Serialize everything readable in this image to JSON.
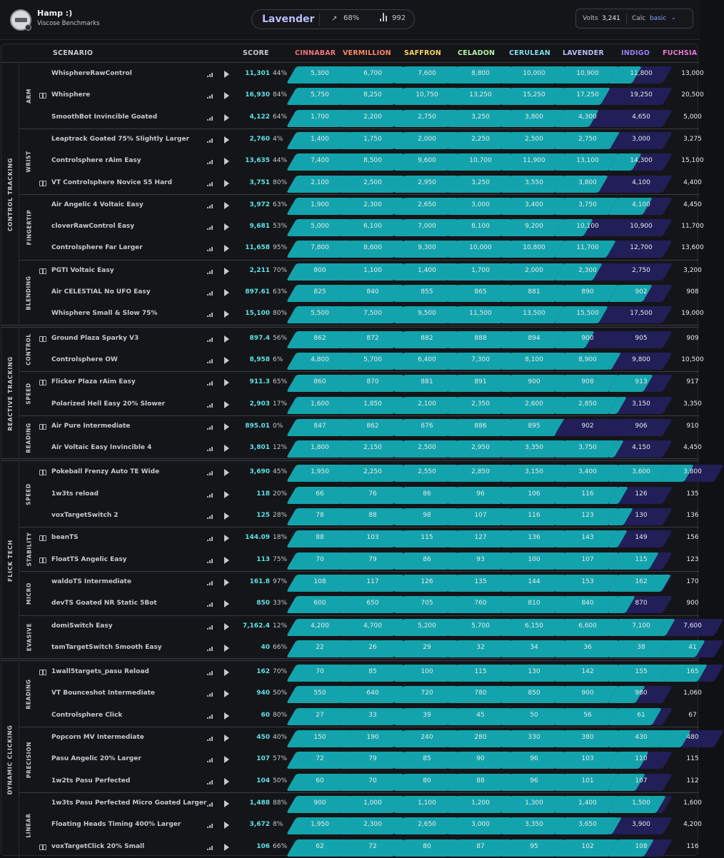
{
  "user": {
    "name": "Hamp :)",
    "subtitle": "Viscose Benchmarks"
  },
  "rank": {
    "name": "Lavender",
    "progress": "68%",
    "count": "992"
  },
  "calc": {
    "volts_label": "Volts",
    "volts": "3,241",
    "calc_label": "Calc",
    "calc_value": "basic"
  },
  "headers": {
    "scenario": "SCENARIO",
    "score": "SCORE"
  },
  "ranks": [
    {
      "name": "CINNABAR",
      "color": "#f0737a"
    },
    {
      "name": "VERMILLION",
      "color": "#f88a66"
    },
    {
      "name": "SAFFRON",
      "color": "#f4d35e"
    },
    {
      "name": "CELADON",
      "color": "#b8f3a6"
    },
    {
      "name": "CERULEAN",
      "color": "#7fdcf0"
    },
    {
      "name": "LAVENDER",
      "color": "#b9bdfa"
    },
    {
      "name": "INDIGO",
      "color": "#9b7ef8"
    },
    {
      "name": "FUCHSIA",
      "color": "#e879d8"
    }
  ],
  "colors": {
    "teal": "#13a3ac",
    "purple": "#5c2fae",
    "dark": "#211e58",
    "text_teal": "#5fe2e8",
    "text_purple": "#c59af5",
    "text_blue": "#a9c2ff",
    "text_dim": "#d4d6db"
  },
  "categories": [
    {
      "name": "CONTROL TRACKING",
      "subcategories": [
        {
          "name": "ARM",
          "scenarios": [
            {
              "name": "WhisphereRawControl",
              "book": false,
              "score": "11,301",
              "pct": "44%",
              "thresholds": [
                "5,300",
                "6,700",
                "7,600",
                "8,800",
                "10,000",
                "10,900",
                "11,800",
                "13,000"
              ]
            },
            {
              "name": "Whisphere",
              "book": true,
              "score": "16,930",
              "pct": "84%",
              "thresholds": [
                "5,750",
                "8,250",
                "10,750",
                "13,250",
                "15,250",
                "17,250",
                "19,250",
                "20,500"
              ]
            },
            {
              "name": "SmoothBot Invincible Goated",
              "book": false,
              "score": "4,122",
              "pct": "64%",
              "thresholds": [
                "1,700",
                "2,200",
                "2,750",
                "3,250",
                "3,800",
                "4,300",
                "4,650",
                "5,000"
              ]
            }
          ]
        },
        {
          "name": "WRIST",
          "scenarios": [
            {
              "name": "Leaptrack Goated 75% Slightly Larger",
              "book": false,
              "score": "2,760",
              "pct": "4%",
              "thresholds": [
                "1,400",
                "1,750",
                "2,000",
                "2,250",
                "2,500",
                "2,750",
                "3,000",
                "3,275"
              ]
            },
            {
              "name": "Controlsphere rAim Easy",
              "book": false,
              "score": "13,635",
              "pct": "44%",
              "thresholds": [
                "7,400",
                "8,500",
                "9,600",
                "10,700",
                "11,900",
                "13,100",
                "14,300",
                "15,100"
              ]
            },
            {
              "name": "VT Controlsphere Novice S5 Hard",
              "book": true,
              "score": "3,751",
              "pct": "80%",
              "thresholds": [
                "2,100",
                "2,500",
                "2,950",
                "3,250",
                "3,550",
                "3,800",
                "4,100",
                "4,400"
              ]
            }
          ]
        },
        {
          "name": "FINGERTIP",
          "scenarios": [
            {
              "name": "Air Angelic 4 Voltaic Easy",
              "book": false,
              "score": "3,972",
              "pct": "63%",
              "thresholds": [
                "1,900",
                "2,300",
                "2,650",
                "3,000",
                "3,400",
                "3,750",
                "4,100",
                "4,450"
              ]
            },
            {
              "name": "cloverRawControl Easy",
              "book": false,
              "score": "9,681",
              "pct": "53%",
              "thresholds": [
                "5,000",
                "6,100",
                "7,000",
                "8,100",
                "9,200",
                "10,100",
                "10,900",
                "11,700"
              ]
            },
            {
              "name": "Controlsphere Far Larger",
              "book": false,
              "score": "11,658",
              "pct": "95%",
              "thresholds": [
                "7,800",
                "8,600",
                "9,300",
                "10,000",
                "10,800",
                "11,700",
                "12,700",
                "13,600"
              ]
            }
          ]
        },
        {
          "name": "BLENDING",
          "scenarios": [
            {
              "name": "PGTI Voltaic Easy",
              "book": true,
              "score": "2,211",
              "pct": "70%",
              "thresholds": [
                "800",
                "1,100",
                "1,400",
                "1,700",
                "2,000",
                "2,300",
                "2,750",
                "3,200"
              ]
            },
            {
              "name": "Air CELESTIAL No UFO Easy",
              "book": false,
              "score": "897.61",
              "pct": "63%",
              "thresholds": [
                "825",
                "840",
                "855",
                "865",
                "881",
                "890",
                "902",
                "908"
              ]
            },
            {
              "name": "Whisphere Small & Slow 75%",
              "book": false,
              "score": "15,100",
              "pct": "80%",
              "thresholds": [
                "5,500",
                "7,500",
                "9,500",
                "11,500",
                "13,500",
                "15,500",
                "17,500",
                "19,000"
              ]
            }
          ]
        }
      ]
    },
    {
      "name": "REACTIVE TRACKING",
      "subcategories": [
        {
          "name": "CONTROL",
          "scenarios": [
            {
              "name": "Ground Plaza Sparky V3",
              "book": true,
              "score": "897.4",
              "pct": "56%",
              "thresholds": [
                "862",
                "872",
                "882",
                "888",
                "894",
                "900",
                "905",
                "909"
              ]
            },
            {
              "name": "Controlsphere OW",
              "book": false,
              "score": "8,958",
              "pct": "6%",
              "thresholds": [
                "4,800",
                "5,700",
                "6,400",
                "7,300",
                "8,100",
                "8,900",
                "9,800",
                "10,500"
              ]
            }
          ]
        },
        {
          "name": "SPEED",
          "scenarios": [
            {
              "name": "Flicker Plaza rAim Easy",
              "book": true,
              "score": "911.3",
              "pct": "65%",
              "thresholds": [
                "860",
                "870",
                "881",
                "891",
                "900",
                "908",
                "913",
                "917"
              ]
            },
            {
              "name": "Polarized Hell Easy 20% Slower",
              "book": false,
              "score": "2,903",
              "pct": "17%",
              "thresholds": [
                "1,600",
                "1,850",
                "2,100",
                "2,350",
                "2,600",
                "2,850",
                "3,150",
                "3,350"
              ]
            }
          ]
        },
        {
          "name": "READING",
          "scenarios": [
            {
              "name": "Air Pure Intermediate",
              "book": true,
              "score": "895.01",
              "pct": "0%",
              "thresholds": [
                "847",
                "862",
                "876",
                "886",
                "895",
                "902",
                "906",
                "910"
              ]
            },
            {
              "name": "Air Voltaic Easy Invincible 4",
              "book": false,
              "score": "3,801",
              "pct": "12%",
              "thresholds": [
                "1,800",
                "2,150",
                "2,500",
                "2,950",
                "3,350",
                "3,750",
                "4,150",
                "4,450"
              ]
            }
          ]
        }
      ]
    },
    {
      "name": "FLICK TECH",
      "subcategories": [
        {
          "name": "SPEED",
          "scenarios": [
            {
              "name": "Pokeball Frenzy Auto TE Wide",
              "book": true,
              "score": "3,690",
              "pct": "45%",
              "thresholds": [
                "1,950",
                "2,250",
                "2,550",
                "2,850",
                "3,150",
                "3,400",
                "3,600",
                "3,800"
              ]
            },
            {
              "name": "1w3ts reload",
              "book": false,
              "score": "118",
              "pct": "20%",
              "thresholds": [
                "66",
                "76",
                "86",
                "96",
                "106",
                "116",
                "126",
                "135"
              ]
            },
            {
              "name": "voxTargetSwitch 2",
              "book": false,
              "score": "125",
              "pct": "28%",
              "thresholds": [
                "78",
                "88",
                "98",
                "107",
                "116",
                "123",
                "130",
                "136"
              ]
            }
          ]
        },
        {
          "name": "STABILITY",
          "scenarios": [
            {
              "name": "beanTS",
              "book": true,
              "score": "144.09",
              "pct": "18%",
              "thresholds": [
                "88",
                "103",
                "115",
                "127",
                "136",
                "143",
                "149",
                "156"
              ]
            },
            {
              "name": "FloatTS Angelic Easy",
              "book": true,
              "score": "113",
              "pct": "75%",
              "thresholds": [
                "70",
                "79",
                "86",
                "93",
                "100",
                "107",
                "115",
                "123"
              ]
            }
          ]
        },
        {
          "name": "MICRO",
          "scenarios": [
            {
              "name": "waldoTS Intermediate",
              "book": false,
              "score": "161.8",
              "pct": "97%",
              "thresholds": [
                "108",
                "117",
                "126",
                "135",
                "144",
                "153",
                "162",
                "170"
              ]
            },
            {
              "name": "devTS Goated NR Static 5Bot",
              "book": false,
              "score": "850",
              "pct": "33%",
              "thresholds": [
                "600",
                "650",
                "705",
                "760",
                "810",
                "840",
                "870",
                "900"
              ]
            }
          ]
        },
        {
          "name": "EVASIVE",
          "scenarios": [
            {
              "name": "domiSwitch Easy",
              "book": false,
              "score": "7,162.4",
              "pct": "12%",
              "thresholds": [
                "4,200",
                "4,700",
                "5,200",
                "5,700",
                "6,150",
                "6,600",
                "7,100",
                "7,600"
              ]
            },
            {
              "name": "tamTargetSwitch Smooth Easy",
              "book": false,
              "score": "40",
              "pct": "66%",
              "thresholds": [
                "22",
                "26",
                "29",
                "32",
                "34",
                "36",
                "38",
                "41"
              ]
            }
          ]
        }
      ]
    },
    {
      "name": "DYNAMIC CLICKING",
      "subcategories": [
        {
          "name": "READING",
          "scenarios": [
            {
              "name": "1wall5targets_pasu Reload",
              "book": true,
              "score": "162",
              "pct": "70%",
              "thresholds": [
                "70",
                "85",
                "100",
                "115",
                "130",
                "142",
                "155",
                "165"
              ]
            },
            {
              "name": "VT Bounceshot Intermediate",
              "book": false,
              "score": "940",
              "pct": "50%",
              "thresholds": [
                "550",
                "640",
                "720",
                "780",
                "850",
                "900",
                "980",
                "1,060"
              ]
            },
            {
              "name": "Controlsphere Click",
              "book": false,
              "score": "60",
              "pct": "80%",
              "thresholds": [
                "27",
                "33",
                "39",
                "45",
                "50",
                "56",
                "61",
                "67"
              ]
            }
          ]
        },
        {
          "name": "PRECISION",
          "scenarios": [
            {
              "name": "Popcorn MV Intermediate",
              "book": false,
              "score": "450",
              "pct": "40%",
              "thresholds": [
                "150",
                "190",
                "240",
                "280",
                "330",
                "380",
                "430",
                "480"
              ]
            },
            {
              "name": "Pasu Angelic 20% Larger",
              "book": false,
              "score": "107",
              "pct": "57%",
              "thresholds": [
                "72",
                "79",
                "85",
                "90",
                "96",
                "103",
                "110",
                "115"
              ]
            },
            {
              "name": "1w2ts Pasu Perfected",
              "book": false,
              "score": "104",
              "pct": "50%",
              "thresholds": [
                "60",
                "70",
                "80",
                "88",
                "96",
                "101",
                "107",
                "112"
              ]
            }
          ]
        },
        {
          "name": "LINEAR",
          "scenarios": [
            {
              "name": "1w3ts Pasu Perfected Micro Goated Larger",
              "book": false,
              "score": "1,488",
              "pct": "88%",
              "thresholds": [
                "900",
                "1,000",
                "1,100",
                "1,200",
                "1,300",
                "1,400",
                "1,500",
                "1,600"
              ]
            },
            {
              "name": "Floating Heads Timing 400% Larger",
              "book": false,
              "score": "3,672",
              "pct": "8%",
              "thresholds": [
                "1,950",
                "2,300",
                "2,650",
                "3,000",
                "3,350",
                "3,650",
                "3,900",
                "4,200"
              ]
            },
            {
              "name": "voxTargetClick 20% Small",
              "book": true,
              "score": "106",
              "pct": "66%",
              "thresholds": [
                "62",
                "72",
                "80",
                "87",
                "95",
                "102",
                "108",
                "116"
              ]
            }
          ]
        }
      ]
    }
  ]
}
